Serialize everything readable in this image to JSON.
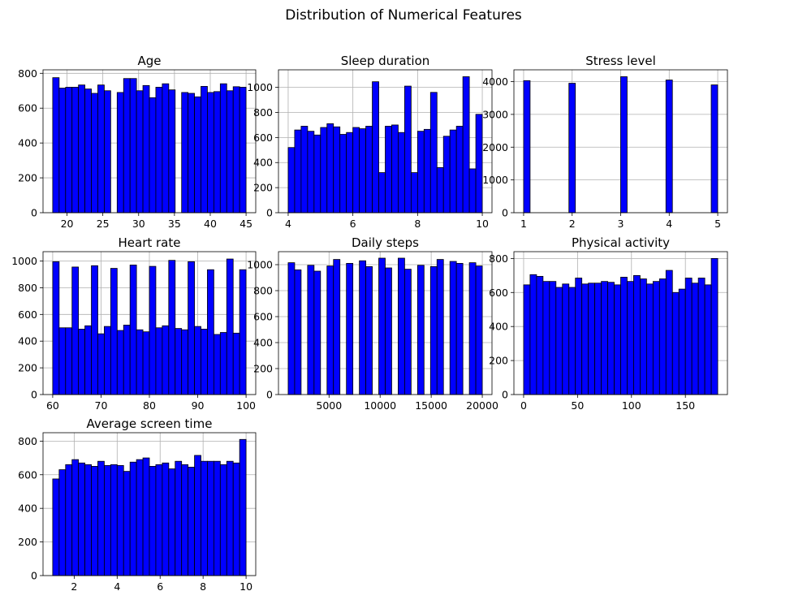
{
  "figure": {
    "title": "Distribution of Numerical Features"
  },
  "style": {
    "bar_fill": "#0000ff",
    "bar_edge": "#000000",
    "grid_color": "#b0b0b0",
    "grid": true
  },
  "chart_data": [
    {
      "type": "bar",
      "title": "Age",
      "xlim": [
        16.65,
        46.35
      ],
      "ylim": [
        0,
        820
      ],
      "xticks": [
        20,
        25,
        30,
        35,
        40,
        45
      ],
      "yticks": [
        0,
        200,
        400,
        600,
        800
      ],
      "bin_start": 18,
      "bin_width": 0.9,
      "values": [
        775,
        715,
        720,
        720,
        733,
        710,
        685,
        733,
        700,
        0,
        690,
        770,
        770,
        700,
        730,
        660,
        720,
        740,
        705,
        0,
        690,
        685,
        665,
        725,
        690,
        695,
        740,
        700,
        723,
        720
      ]
    },
    {
      "type": "bar",
      "title": "Sleep duration",
      "xlim": [
        3.7,
        10.3
      ],
      "ylim": [
        0,
        1140
      ],
      "xticks": [
        4,
        6,
        8,
        10
      ],
      "yticks": [
        0,
        200,
        400,
        600,
        800,
        1000
      ],
      "bin_start": 4,
      "bin_width": 0.2,
      "values": [
        520,
        660,
        690,
        650,
        620,
        680,
        710,
        685,
        625,
        640,
        680,
        670,
        690,
        1045,
        320,
        690,
        700,
        640,
        1010,
        320,
        650,
        665,
        960,
        360,
        610,
        660,
        690,
        1085,
        350,
        785
      ]
    },
    {
      "type": "bar",
      "title": "Stress level",
      "xlim": [
        0.8,
        5.2
      ],
      "ylim": [
        0,
        4360
      ],
      "xticks": [
        1,
        2,
        3,
        4,
        5
      ],
      "yticks": [
        0,
        1000,
        2000,
        3000,
        4000
      ],
      "bin_start": 1,
      "bin_width": 0.1333,
      "values": [
        4030,
        0,
        0,
        0,
        0,
        0,
        0,
        3950,
        0,
        0,
        0,
        0,
        0,
        0,
        0,
        4150,
        0,
        0,
        0,
        0,
        0,
        0,
        4050,
        0,
        0,
        0,
        0,
        0,
        0,
        3900
      ]
    },
    {
      "type": "bar",
      "title": "Heart rate",
      "xlim": [
        58,
        102
      ],
      "ylim": [
        0,
        1070
      ],
      "xticks": [
        60,
        70,
        80,
        90,
        100
      ],
      "yticks": [
        0,
        200,
        400,
        600,
        800,
        1000
      ],
      "bin_start": 60,
      "bin_width": 1.3333,
      "values": [
        995,
        500,
        500,
        955,
        490,
        515,
        965,
        455,
        510,
        945,
        480,
        520,
        970,
        485,
        470,
        960,
        500,
        515,
        1005,
        495,
        485,
        995,
        510,
        490,
        935,
        450,
        465,
        1015,
        460,
        935
      ]
    },
    {
      "type": "bar",
      "title": "Daily steps",
      "xlim": [
        50,
        20950
      ],
      "ylim": [
        0,
        1100
      ],
      "xticks": [
        5000,
        10000,
        15000,
        20000
      ],
      "yticks": [
        0,
        200,
        400,
        600,
        800,
        1000
      ],
      "bin_start": 1000,
      "bin_width": 633.33,
      "values": [
        1015,
        960,
        0,
        995,
        950,
        0,
        990,
        1040,
        0,
        1010,
        0,
        1030,
        985,
        0,
        1050,
        975,
        0,
        1050,
        965,
        0,
        995,
        0,
        985,
        1040,
        0,
        1025,
        1010,
        0,
        1015,
        990
      ]
    },
    {
      "type": "bar",
      "title": "Physical activity",
      "xlim": [
        -9,
        189
      ],
      "ylim": [
        0,
        840
      ],
      "xticks": [
        0,
        50,
        100,
        150
      ],
      "yticks": [
        0,
        200,
        400,
        600,
        800
      ],
      "bin_start": 0,
      "bin_width": 6,
      "values": [
        645,
        705,
        695,
        665,
        665,
        630,
        650,
        630,
        685,
        650,
        655,
        655,
        665,
        660,
        645,
        690,
        665,
        700,
        680,
        650,
        665,
        680,
        730,
        600,
        620,
        685,
        655,
        685,
        645,
        800
      ]
    },
    {
      "type": "bar",
      "title": "Average screen time",
      "xlim": [
        0.55,
        10.45
      ],
      "ylim": [
        0,
        850
      ],
      "xticks": [
        2,
        4,
        6,
        8,
        10
      ],
      "yticks": [
        0,
        200,
        400,
        600,
        800
      ],
      "bin_start": 1,
      "bin_width": 0.3,
      "values": [
        575,
        630,
        660,
        690,
        670,
        660,
        650,
        680,
        655,
        660,
        655,
        620,
        675,
        690,
        700,
        650,
        660,
        670,
        635,
        680,
        660,
        645,
        715,
        680,
        680,
        680,
        660,
        680,
        670,
        810
      ]
    }
  ]
}
